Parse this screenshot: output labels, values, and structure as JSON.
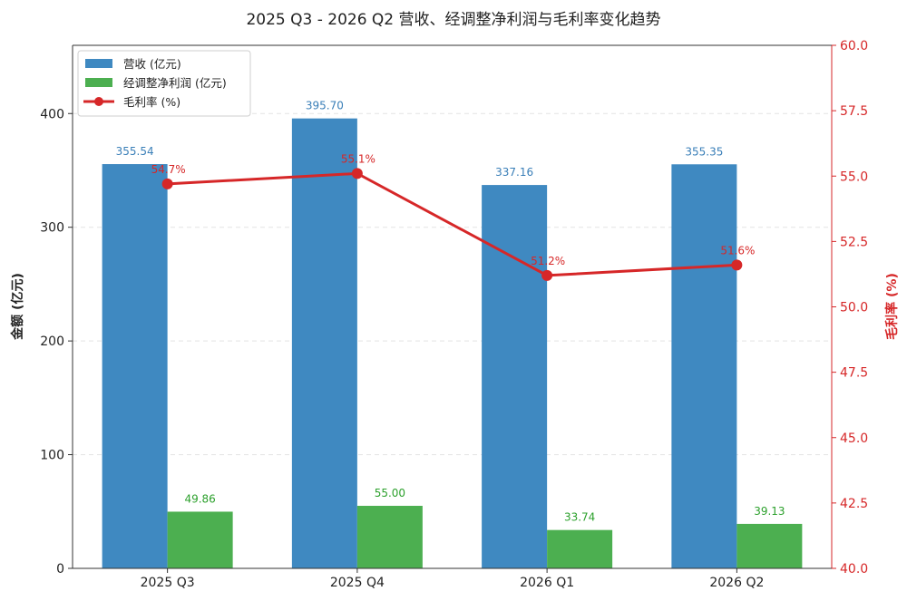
{
  "chart_data": {
    "type": "bar",
    "title": "2025 Q3 - 2026 Q2 营收、经调整净利润与毛利率变化趋势",
    "categories": [
      "2025 Q3",
      "2025 Q4",
      "2026 Q1",
      "2026 Q2"
    ],
    "ylabel": "金额 (亿元)",
    "ylabel_right": "毛利率 (%)",
    "ylim": [
      0,
      460
    ],
    "ylim_right": [
      40,
      60
    ],
    "yticks": [
      "0",
      "100",
      "200",
      "300",
      "400"
    ],
    "yticks_right": [
      "40.0",
      "42.5",
      "45.0",
      "47.5",
      "50.0",
      "52.5",
      "55.0",
      "57.5",
      "60.0"
    ],
    "grid": "horizontal dashed",
    "legend_position": "top-left",
    "series": [
      {
        "name": "营收 (亿元)",
        "kind": "bar",
        "axis": "left",
        "color": "#3f89c1",
        "values": [
          355.54,
          395.7,
          337.16,
          355.35
        ],
        "labels": [
          "355.54",
          "395.70",
          "337.16",
          "355.35"
        ]
      },
      {
        "name": "经调整净利润 (亿元)",
        "kind": "bar",
        "axis": "left",
        "color": "#4caf50",
        "values": [
          49.86,
          55.0,
          33.74,
          39.13
        ],
        "labels": [
          "49.86",
          "55.00",
          "33.74",
          "39.13"
        ]
      },
      {
        "name": "毛利率 (%)",
        "kind": "line",
        "axis": "right",
        "color": "#d62728",
        "values": [
          54.7,
          55.1,
          51.2,
          51.6
        ],
        "labels": [
          "54.7%",
          "55.1%",
          "51.2%",
          "51.6%"
        ]
      }
    ]
  }
}
